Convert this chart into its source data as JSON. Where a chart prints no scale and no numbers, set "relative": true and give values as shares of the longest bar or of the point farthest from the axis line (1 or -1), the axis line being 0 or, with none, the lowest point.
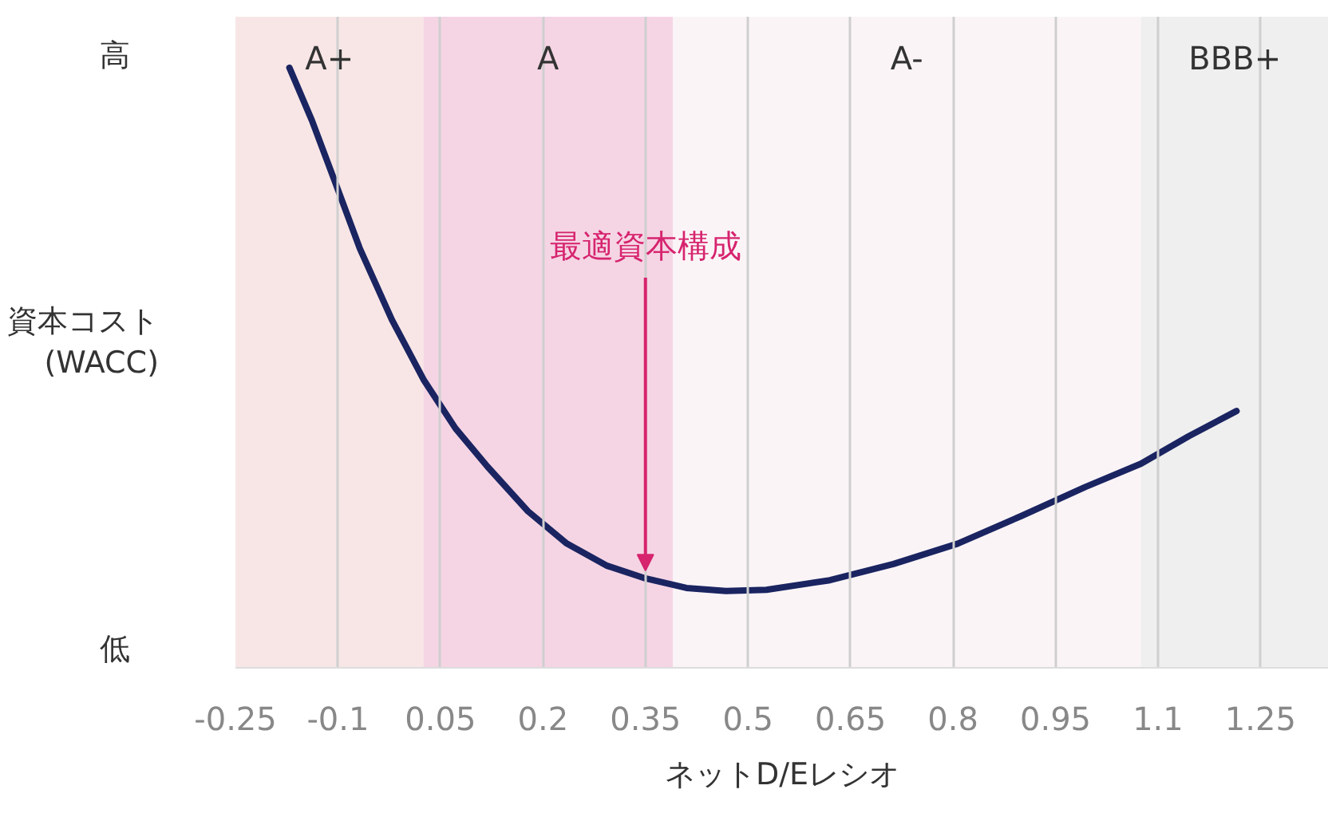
{
  "chart_data": {
    "type": "line",
    "relative": true,
    "xlabel": "ネットD/Eレシオ",
    "ylabel": "資本コスト\n(WACC)",
    "x": [
      -0.171,
      -0.138,
      -0.103,
      -0.068,
      -0.021,
      0.026,
      0.072,
      0.119,
      0.178,
      0.235,
      0.294,
      0.35,
      0.41,
      0.468,
      0.527,
      0.62,
      0.713,
      0.807,
      0.9,
      0.993,
      1.075,
      1.145,
      1.215
    ],
    "series": [
      {
        "color": "#1a2461",
        "values": [
          1.0,
          0.912,
          0.806,
          0.699,
          0.58,
          0.479,
          0.399,
          0.335,
          0.261,
          0.207,
          0.17,
          0.149,
          0.133,
          0.128,
          0.13,
          0.146,
          0.173,
          0.207,
          0.253,
          0.301,
          0.34,
          0.386,
          0.428
        ]
      }
    ],
    "xlim": [
      -0.25,
      1.35
    ],
    "xticks": [
      -0.25,
      -0.1,
      0.05,
      0.2,
      0.35,
      0.5,
      0.65,
      0.8,
      0.95,
      1.1,
      1.25
    ],
    "grid": "x",
    "marker": "none",
    "line_style": "solid",
    "bands": [
      {
        "axis": "x",
        "from": -0.25,
        "to": 0.025,
        "label": "A+",
        "color": "#f8e6e6"
      },
      {
        "axis": "x",
        "from": 0.025,
        "to": 0.39,
        "label": "A",
        "color": "#f5d5e4"
      },
      {
        "axis": "x",
        "from": 0.39,
        "to": 1.075,
        "label": "A-",
        "color": "#fbf4f7"
      },
      {
        "axis": "x",
        "from": 1.075,
        "to": 1.35,
        "label": "BBB+",
        "color": "#efefef"
      }
    ],
    "annotations": [
      "高",
      "低",
      {
        "text": "最適資本構成",
        "x": 0.35,
        "y": 0.162
      }
    ]
  }
}
